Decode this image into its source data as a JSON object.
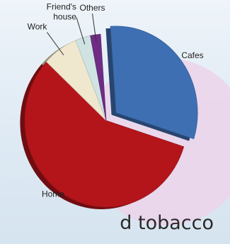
{
  "chart_data": {
    "type": "pie",
    "title": "",
    "categories": [
      "Cafes",
      "Home",
      "Work",
      "Friend's house",
      "Others"
    ],
    "values": [
      31,
      57,
      7,
      3,
      2
    ],
    "unit": "%",
    "colors": [
      "#3f6fb3",
      "#b3151b",
      "#efe8cf",
      "#cfe4e2",
      "#6f2c85"
    ],
    "slices": [
      {
        "name": "Cafes",
        "label_lines": [
          "Cafes"
        ],
        "value": 31,
        "color": "#3f6fb3",
        "exploded": true
      },
      {
        "name": "Home",
        "label_lines": [
          "Home"
        ],
        "value": 57,
        "color": "#b3151b",
        "exploded": false
      },
      {
        "name": "Work",
        "label_lines": [
          "Work"
        ],
        "value": 7,
        "color": "#efe8cf",
        "exploded": false
      },
      {
        "name": "Friend's house",
        "label_lines": [
          "Friend's",
          "house"
        ],
        "value": 3,
        "color": "#cfe4e2",
        "exploded": false
      },
      {
        "name": "Others",
        "label_lines": [
          "Others"
        ],
        "value": 2,
        "color": "#6f2c85",
        "exploded": false
      }
    ],
    "legend": "none"
  },
  "footer_text": "d tobacco",
  "decor": {
    "circle_color": "#ecd3ea"
  }
}
